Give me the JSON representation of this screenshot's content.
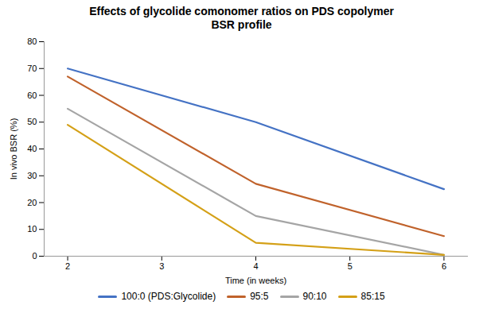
{
  "chart_data": {
    "type": "line",
    "title": "Effects of glycolide comonomer ratios on PDS copolymer\nBSR profile",
    "xlabel": "Time (in weeks)",
    "ylabel": "In vivo BSR (%)",
    "x": [
      2,
      4,
      6
    ],
    "series": [
      {
        "name": "100:0 (PDS:Glycolide)",
        "color": "#4472C4",
        "values": [
          70,
          50,
          25
        ]
      },
      {
        "name": "95:5",
        "color": "#C0622B",
        "values": [
          67,
          27,
          7.5
        ]
      },
      {
        "name": "90:10",
        "color": "#A5A5A5",
        "values": [
          55,
          15,
          0.5
        ]
      },
      {
        "name": "85:15",
        "color": "#D4A017",
        "values": [
          49,
          5,
          0.5
        ]
      }
    ],
    "xlim": [
      1.75,
      6.25
    ],
    "ylim": [
      0,
      80
    ],
    "xticks": [
      2,
      3,
      4,
      5,
      6
    ],
    "yticks": [
      0,
      10,
      20,
      30,
      40,
      50,
      60,
      70,
      80
    ],
    "grid": false,
    "legend": "bottom"
  }
}
